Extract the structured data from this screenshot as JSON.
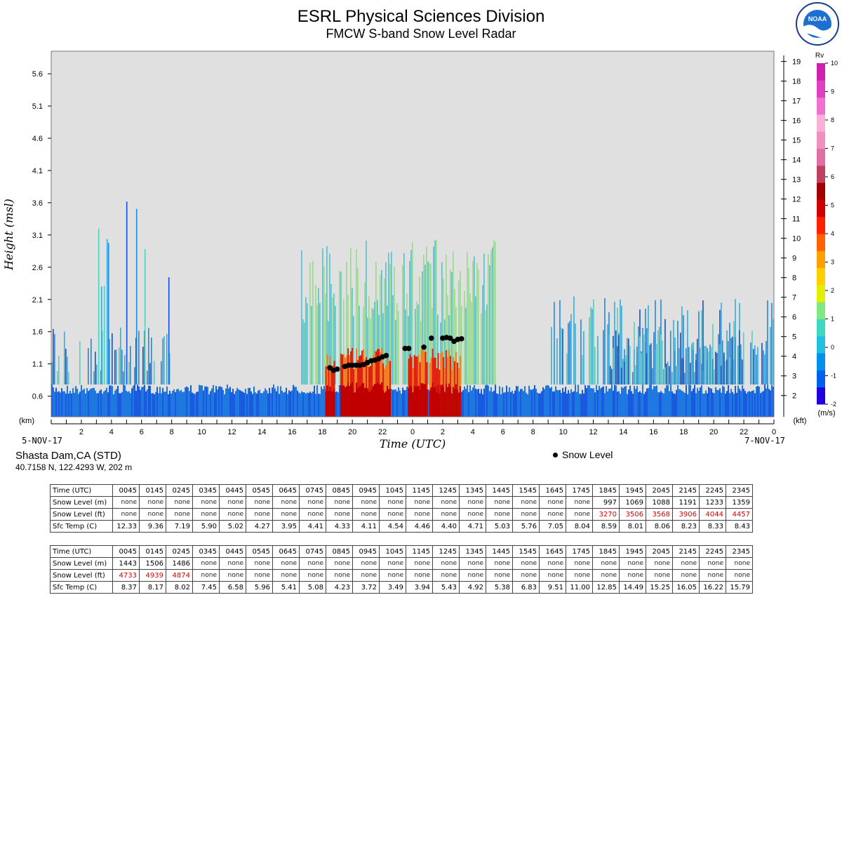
{
  "title": "ESRL Physical Sciences Division",
  "subtitle": "FMCW S-band Snow Level Radar",
  "logo_text": "NOAA",
  "site": {
    "name": "Shasta Dam,CA (STD)",
    "coords": "40.7158 N, 122.4293 W, 202 m"
  },
  "legend": {
    "snow_level": "Snow Level"
  },
  "chart_data": {
    "type": "heatmap",
    "title": "ESRL Physical Sciences Division",
    "subtitle": "FMCW S-band Snow Level Radar",
    "xlabel": "Time (UTC)",
    "ylabel": "Height (msl)",
    "y_unit_left": "(km)",
    "y_unit_right": "(kft)",
    "colorbar_title": "Rv",
    "colorbar_unit": "(m/s)",
    "date_start": "5-NOV-17",
    "date_end": "7-NOV-17",
    "x_ticklabels": [
      "2",
      "4",
      "6",
      "8",
      "10",
      "12",
      "14",
      "16",
      "18",
      "20",
      "22",
      "0",
      "2",
      "4",
      "6",
      "8",
      "10",
      "12",
      "14",
      "16",
      "18",
      "20",
      "22",
      "0"
    ],
    "y_left_ticks": [
      "0.6",
      "1.1",
      "1.6",
      "2.1",
      "2.6",
      "3.1",
      "3.6",
      "4.1",
      "4.6",
      "5.1",
      "5.6"
    ],
    "y_right_ticks": [
      "2",
      "3",
      "4",
      "5",
      "6",
      "7",
      "8",
      "9",
      "10",
      "11",
      "12",
      "13",
      "14",
      "15",
      "16",
      "17",
      "18",
      "19"
    ],
    "colorbar_ticks": [
      "-2",
      "-1",
      "0",
      "1",
      "2",
      "3",
      "4",
      "5",
      "6",
      "7",
      "8",
      "9",
      "10"
    ],
    "colorbar_range": [
      -2,
      10
    ],
    "colors": {
      "background": "#e0e0e0",
      "low": "#1060e0",
      "mid": "#40c8d8",
      "high": "#ffe000",
      "max": "#c00000",
      "snow_marker": "#000000"
    },
    "snow_level_km": [
      {
        "hour": 18.5,
        "km": 1.04
      },
      {
        "hour": 18.75,
        "km": 1.0
      },
      {
        "hour": 19.0,
        "km": 1.02
      },
      {
        "hour": 19.5,
        "km": 1.06
      },
      {
        "hour": 19.75,
        "km": 1.08
      },
      {
        "hour": 20.0,
        "km": 1.08
      },
      {
        "hour": 20.25,
        "km": 1.08
      },
      {
        "hour": 20.5,
        "km": 1.08
      },
      {
        "hour": 20.75,
        "km": 1.09
      },
      {
        "hour": 21.0,
        "km": 1.12
      },
      {
        "hour": 21.25,
        "km": 1.15
      },
      {
        "hour": 21.5,
        "km": 1.16
      },
      {
        "hour": 21.75,
        "km": 1.18
      },
      {
        "hour": 22.0,
        "km": 1.21
      },
      {
        "hour": 22.25,
        "km": 1.23
      },
      {
        "hour": 23.5,
        "km": 1.34
      },
      {
        "hour": 23.75,
        "km": 1.34
      },
      {
        "hour": 24.75,
        "km": 1.36
      },
      {
        "hour": 25.25,
        "km": 1.5
      },
      {
        "hour": 26.0,
        "km": 1.5
      },
      {
        "hour": 26.25,
        "km": 1.51
      },
      {
        "hour": 26.5,
        "km": 1.5
      },
      {
        "hour": 26.75,
        "km": 1.45
      },
      {
        "hour": 27.0,
        "km": 1.48
      },
      {
        "hour": 27.25,
        "km": 1.49
      }
    ]
  },
  "tables": [
    {
      "rows": [
        {
          "label": "Time (UTC)",
          "cells": [
            "0045",
            "0145",
            "0245",
            "0345",
            "0445",
            "0545",
            "0645",
            "0745",
            "0845",
            "0945",
            "1045",
            "1145",
            "1245",
            "1345",
            "1445",
            "1545",
            "1645",
            "1745",
            "1845",
            "1945",
            "2045",
            "2145",
            "2245",
            "2345"
          ]
        },
        {
          "label": "Snow Level (m)",
          "cells": [
            "none",
            "none",
            "none",
            "none",
            "none",
            "none",
            "none",
            "none",
            "none",
            "none",
            "none",
            "none",
            "none",
            "none",
            "none",
            "none",
            "none",
            "none",
            "997",
            "1069",
            "1088",
            "1191",
            "1233",
            "1359"
          ]
        },
        {
          "label": "Snow Level (ft)",
          "cells": [
            "none",
            "none",
            "none",
            "none",
            "none",
            "none",
            "none",
            "none",
            "none",
            "none",
            "none",
            "none",
            "none",
            "none",
            "none",
            "none",
            "none",
            "none",
            "3270",
            "3506",
            "3568",
            "3906",
            "4044",
            "4457"
          ]
        },
        {
          "label": "Sfc Temp (C)",
          "cells": [
            "12.33",
            "9.36",
            "7.19",
            "5.90",
            "5.02",
            "4.27",
            "3.95",
            "4.41",
            "4.33",
            "4.11",
            "4.54",
            "4.46",
            "4.40",
            "4.71",
            "5.03",
            "5.76",
            "7.05",
            "8.04",
            "8.59",
            "8.01",
            "8.06",
            "8.23",
            "8.33",
            "8.43"
          ]
        }
      ]
    },
    {
      "rows": [
        {
          "label": "Time (UTC)",
          "cells": [
            "0045",
            "0145",
            "0245",
            "0345",
            "0445",
            "0545",
            "0645",
            "0745",
            "0845",
            "0945",
            "1045",
            "1145",
            "1245",
            "1345",
            "1445",
            "1545",
            "1645",
            "1745",
            "1845",
            "1945",
            "2045",
            "2145",
            "2245",
            "2345"
          ]
        },
        {
          "label": "Snow Level (m)",
          "cells": [
            "1443",
            "1506",
            "1486",
            "none",
            "none",
            "none",
            "none",
            "none",
            "none",
            "none",
            "none",
            "none",
            "none",
            "none",
            "none",
            "none",
            "none",
            "none",
            "none",
            "none",
            "none",
            "none",
            "none",
            "none"
          ]
        },
        {
          "label": "Snow Level (ft)",
          "cells": [
            "4733",
            "4939",
            "4874",
            "none",
            "none",
            "none",
            "none",
            "none",
            "none",
            "none",
            "none",
            "none",
            "none",
            "none",
            "none",
            "none",
            "none",
            "none",
            "none",
            "none",
            "none",
            "none",
            "none",
            "none"
          ]
        },
        {
          "label": "Sfc Temp (C)",
          "cells": [
            "8.37",
            "8.17",
            "8.02",
            "7.45",
            "6.58",
            "5.96",
            "5.41",
            "5.08",
            "4.23",
            "3.72",
            "3.49",
            "3.94",
            "5.43",
            "4.92",
            "5.38",
            "6.83",
            "9.51",
            "11.00",
            "12.85",
            "14.49",
            "15.25",
            "16.05",
            "16.22",
            "15.79"
          ]
        }
      ]
    }
  ]
}
